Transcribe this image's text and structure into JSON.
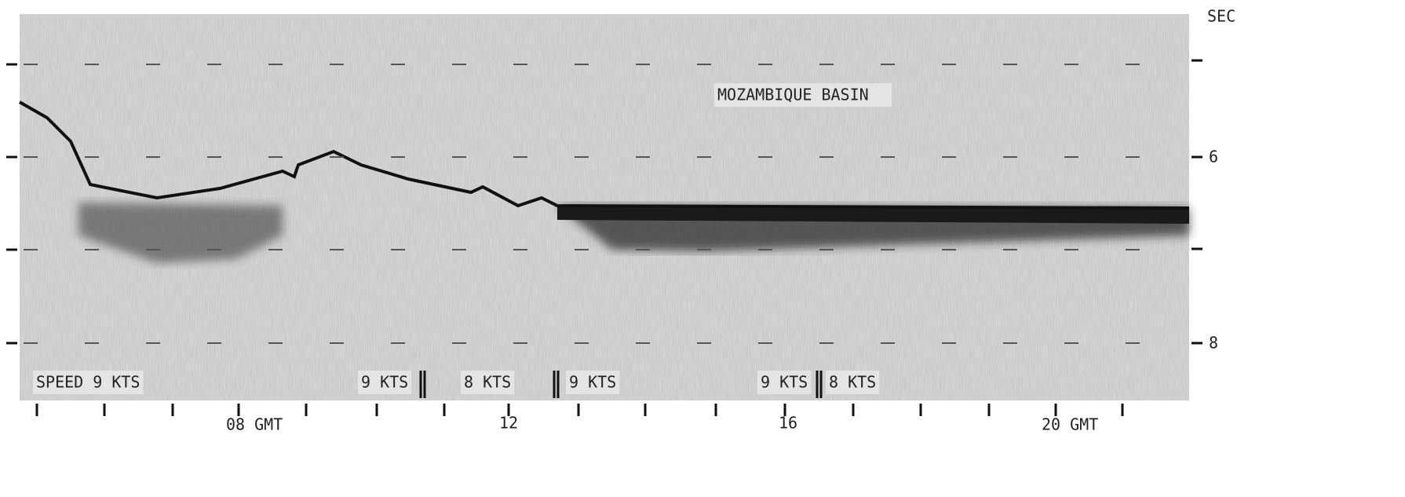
{
  "header": {
    "title": "MOZAMBIQUE BASIN"
  },
  "right_axis": {
    "unit": "SEC",
    "labels": [
      "6",
      "8"
    ]
  },
  "bottom_axis": {
    "labels": [
      "08 GMT",
      "12",
      "16",
      "20 GMT"
    ]
  },
  "speed_labels": [
    "SPEED 9 KTS",
    "9 KTS",
    "8 KTS",
    "9 KTS",
    "9 KTS",
    "8 KTS"
  ]
}
